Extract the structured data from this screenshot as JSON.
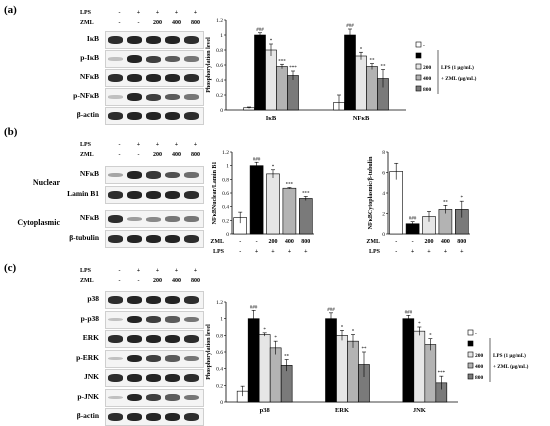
{
  "panels": {
    "a": {
      "label": "(a)"
    },
    "b": {
      "label": "(b)"
    },
    "c": {
      "label": "(c)"
    }
  },
  "treatment": {
    "lps_label": "LPS",
    "zml_label": "ZML",
    "lps_row": [
      "-",
      "+",
      "+",
      "+",
      "+"
    ],
    "zml_row": [
      "-",
      "-",
      "200",
      "400",
      "800"
    ],
    "axis_doses": [
      "-",
      "-",
      "200",
      "400",
      "800"
    ],
    "axis_lps": [
      "-",
      "+",
      "+",
      "+",
      "+"
    ]
  },
  "blots": {
    "a": [
      "IκB",
      "p-IκB",
      "NFκB",
      "p-NFκB",
      "β-actin"
    ],
    "b_nuclear": [
      "NFκB",
      "Lamin B1"
    ],
    "b_cyto": [
      "NFκB",
      "β-tubulin"
    ],
    "b_groups": [
      "Nuclear",
      "Cytoplasmic"
    ],
    "c": [
      "p38",
      "p-p38",
      "ERK",
      "p-ERK",
      "JNK",
      "p-JNK",
      "β-actin"
    ]
  },
  "legend": {
    "entries": [
      "-",
      "",
      "200",
      "400",
      "800"
    ],
    "lps_text": "LPS (1 μg/mL)",
    "zml_text": "+ ZML (μg/mL)",
    "colors": [
      "#ffffff",
      "#000000",
      "#e6e6e6",
      "#b3b3b3",
      "#7a7a7a"
    ]
  },
  "chart_data": [
    {
      "type": "bar",
      "panel": "a",
      "categories": [
        "IκB",
        "NFκB"
      ],
      "ylabel": "Phosphorylation level",
      "ylim": [
        0,
        1.2
      ],
      "yticks": [
        "0",
        "0.2",
        "0.4",
        "0.6",
        "0.8",
        "1",
        "1.2"
      ],
      "series": [
        {
          "values": [
            0.03,
            0.1
          ],
          "errors": [
            0.01,
            0.1
          ],
          "sig": [
            "",
            ""
          ]
        },
        {
          "values": [
            1.0,
            1.0
          ],
          "errors": [
            0.03,
            0.08
          ],
          "sig": [
            "###",
            "###"
          ]
        },
        {
          "values": [
            0.8,
            0.72
          ],
          "errors": [
            0.08,
            0.05
          ],
          "sig": [
            "*",
            "*"
          ]
        },
        {
          "values": [
            0.58,
            0.58
          ],
          "errors": [
            0.03,
            0.04
          ],
          "sig": [
            "***",
            "**"
          ]
        },
        {
          "values": [
            0.46,
            0.42
          ],
          "errors": [
            0.06,
            0.12
          ],
          "sig": [
            "***",
            "**"
          ]
        }
      ]
    },
    {
      "type": "bar",
      "panel": "b-nuclear",
      "categories": [
        "-",
        "-",
        "200",
        "400",
        "800"
      ],
      "ylabel": "NFκBNuclear/Lamin B1",
      "ylim": [
        0,
        1.2
      ],
      "yticks": [
        "0",
        "0.2",
        "0.4",
        "0.6",
        "0.8",
        "1",
        "1.2"
      ],
      "values": [
        0.24,
        1.0,
        0.88,
        0.67,
        0.52
      ],
      "errors": [
        0.08,
        0.05,
        0.06,
        0.01,
        0.03
      ],
      "sig": [
        "",
        "###",
        "*",
        "***",
        "***"
      ]
    },
    {
      "type": "bar",
      "panel": "b-cytoplasmic",
      "categories": [
        "-",
        "-",
        "200",
        "400",
        "800"
      ],
      "ylabel": "NFκBCytoplasmic/β-tubulin",
      "ylim": [
        0,
        8
      ],
      "yticks": [
        "0",
        "2",
        "4",
        "6",
        "8"
      ],
      "values": [
        6.1,
        1.0,
        1.7,
        2.4,
        2.4
      ],
      "errors": [
        0.8,
        0.2,
        0.5,
        0.4,
        0.8
      ],
      "sig": [
        "",
        "###",
        "",
        "**",
        "*"
      ]
    },
    {
      "type": "bar",
      "panel": "c",
      "categories": [
        "p38",
        "ERK",
        "JNK"
      ],
      "ylabel": "Phosphorylation level",
      "ylim": [
        0,
        1.2
      ],
      "yticks": [
        "0",
        "0.2",
        "0.4",
        "0.6",
        "0.8",
        "1",
        "1.2"
      ],
      "series": [
        {
          "values": [
            0.13,
            0.0,
            0.0
          ],
          "errors": [
            0.06,
            0.0,
            0.0
          ],
          "sig": [
            "",
            "",
            ""
          ]
        },
        {
          "values": [
            1.0,
            1.0,
            1.0
          ],
          "errors": [
            0.1,
            0.07,
            0.04
          ],
          "sig": [
            "###",
            "###",
            "###"
          ]
        },
        {
          "values": [
            0.81,
            0.8,
            0.85
          ],
          "errors": [
            0.02,
            0.06,
            0.05
          ],
          "sig": [
            "*",
            "*",
            "*"
          ]
        },
        {
          "values": [
            0.65,
            0.73,
            0.69
          ],
          "errors": [
            0.08,
            0.08,
            0.07
          ],
          "sig": [
            "*",
            "*",
            "*"
          ]
        },
        {
          "values": [
            0.44,
            0.45,
            0.23
          ],
          "errors": [
            0.07,
            0.15,
            0.08
          ],
          "sig": [
            "**",
            "**",
            "***"
          ]
        }
      ]
    }
  ]
}
